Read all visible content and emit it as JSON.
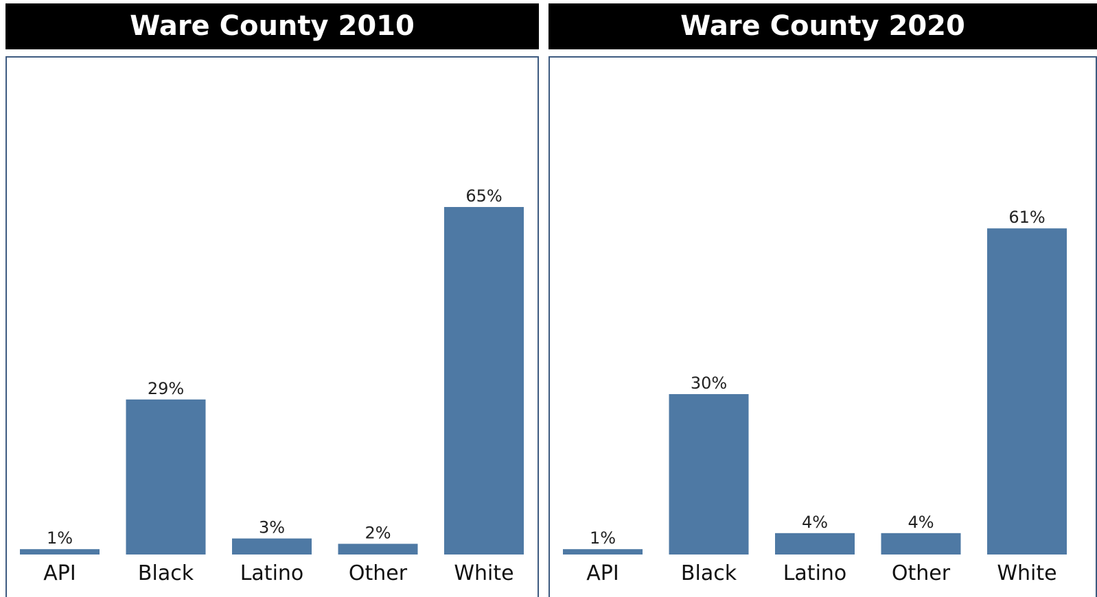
{
  "colors": {
    "bar": "#4e79a4",
    "title_bg": "#000000",
    "title_text": "#ffffff",
    "frame": "#3d5a80"
  },
  "chart_data": [
    {
      "type": "bar",
      "title": "Ware County 2010",
      "categories": [
        "API",
        "Black",
        "Latino",
        "Other",
        "White"
      ],
      "values": [
        1,
        29,
        3,
        2,
        65
      ],
      "data_labels": [
        "1%",
        "29%",
        "3%",
        "2%",
        "65%"
      ],
      "xlabel": "",
      "ylabel": "",
      "ylim": [
        0,
        65
      ],
      "grid": false
    },
    {
      "type": "bar",
      "title": "Ware County 2020",
      "categories": [
        "API",
        "Black",
        "Latino",
        "Other",
        "White"
      ],
      "values": [
        1,
        30,
        4,
        4,
        61
      ],
      "data_labels": [
        "1%",
        "30%",
        "4%",
        "4%",
        "61%"
      ],
      "xlabel": "",
      "ylabel": "",
      "ylim": [
        0,
        65
      ],
      "grid": false
    }
  ]
}
